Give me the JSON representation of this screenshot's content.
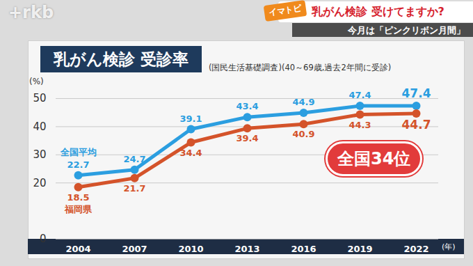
{
  "screen": {
    "logo": "+rkb",
    "badge": "イマトピ",
    "headline": "乳がん検診 受けてますか?",
    "subline": "今月は「ピンクリボン月間」"
  },
  "chart_data": {
    "type": "line",
    "title": "乳がん検診 受診率",
    "subtitle": "(国民生活基礎調査)(40～69歳,過去2年間に受診)",
    "xlabel": "(年)",
    "ylabel": "(%)",
    "categories": [
      "2004",
      "2007",
      "2010",
      "2013",
      "2016",
      "2019",
      "2022"
    ],
    "series": [
      {
        "name": "全国平均",
        "color": "#2b9ee0",
        "values": [
          22.7,
          24.7,
          39.1,
          43.4,
          44.9,
          47.4,
          47.4
        ]
      },
      {
        "name": "福岡県",
        "color": "#d4532a",
        "values": [
          18.5,
          21.7,
          34.4,
          39.4,
          40.9,
          44.3,
          44.7
        ]
      }
    ],
    "ylim": [
      0,
      50
    ],
    "yticks": [
      0,
      20,
      30,
      40,
      50
    ],
    "grid": true,
    "data_labels": true,
    "marker": "circle",
    "annotations": [
      "全国34位"
    ]
  }
}
